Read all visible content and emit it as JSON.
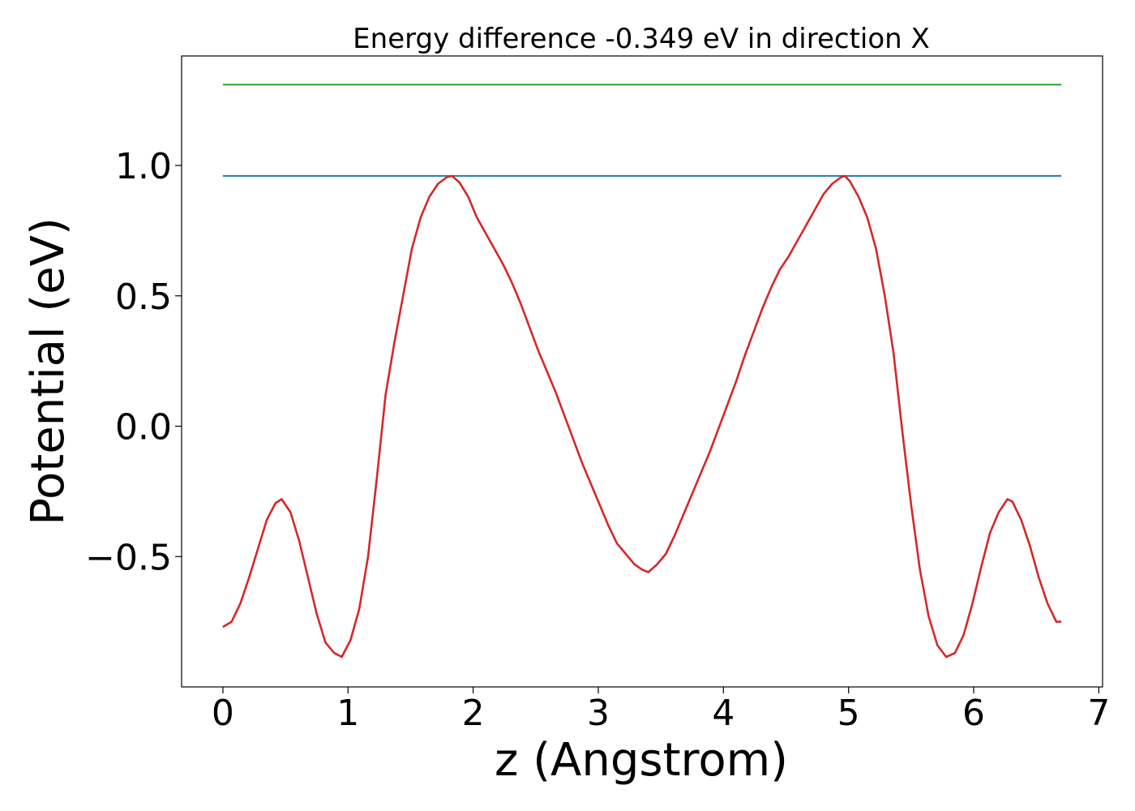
{
  "chart_data": {
    "type": "line",
    "title": "Energy difference -0.349 eV in direction X",
    "xlabel": "z (Angstrom)",
    "ylabel": "Potential (eV)",
    "xlim": [
      -0.33,
      7.03
    ],
    "ylim": [
      -1.0,
      1.42
    ],
    "x_ticks": [
      0,
      1,
      2,
      3,
      4,
      5,
      6,
      7
    ],
    "x_tick_labels": [
      "0",
      "1",
      "2",
      "3",
      "4",
      "5",
      "6",
      "7"
    ],
    "y_ticks": [
      -0.5,
      0.0,
      0.5,
      1.0
    ],
    "y_tick_labels": [
      "−0.5",
      "0.0",
      "0.5",
      "1.0"
    ],
    "grid": false,
    "legend": false,
    "series": [
      {
        "color": "#1f77b4",
        "x": [
          0,
          6.7
        ],
        "y": [
          0.96,
          0.96
        ]
      },
      {
        "color": "#2ca02c",
        "x": [
          0,
          6.7
        ],
        "y": [
          1.31,
          1.31
        ]
      },
      {
        "color": "#d62728",
        "x": [
          0.0,
          0.07,
          0.14,
          0.21,
          0.28,
          0.35,
          0.42,
          0.47,
          0.54,
          0.61,
          0.68,
          0.75,
          0.82,
          0.89,
          0.95,
          1.02,
          1.09,
          1.16,
          1.23,
          1.3,
          1.37,
          1.44,
          1.51,
          1.58,
          1.65,
          1.72,
          1.79,
          1.83,
          1.89,
          1.96,
          2.03,
          2.1,
          2.17,
          2.24,
          2.31,
          2.38,
          2.45,
          2.52,
          2.59,
          2.66,
          2.73,
          2.8,
          2.87,
          2.94,
          3.01,
          3.08,
          3.15,
          3.22,
          3.29,
          3.35,
          3.4,
          3.47,
          3.54,
          3.61,
          3.68,
          3.75,
          3.82,
          3.89,
          3.96,
          4.03,
          4.1,
          4.17,
          4.24,
          4.31,
          4.38,
          4.45,
          4.52,
          4.59,
          4.66,
          4.73,
          4.8,
          4.87,
          4.94,
          4.97,
          5.01,
          5.08,
          5.15,
          5.22,
          5.29,
          5.36,
          5.43,
          5.5,
          5.57,
          5.64,
          5.71,
          5.78,
          5.85,
          5.92,
          5.99,
          6.06,
          6.13,
          6.2,
          6.27,
          6.31,
          6.38,
          6.45,
          6.52,
          6.59,
          6.66,
          6.7
        ],
        "y": [
          -0.77,
          -0.75,
          -0.68,
          -0.58,
          -0.47,
          -0.36,
          -0.295,
          -0.28,
          -0.33,
          -0.44,
          -0.58,
          -0.72,
          -0.83,
          -0.87,
          -0.885,
          -0.82,
          -0.7,
          -0.5,
          -0.2,
          0.12,
          0.32,
          0.5,
          0.68,
          0.8,
          0.88,
          0.93,
          0.955,
          0.96,
          0.935,
          0.88,
          0.8,
          0.74,
          0.68,
          0.62,
          0.55,
          0.47,
          0.38,
          0.29,
          0.21,
          0.13,
          0.04,
          -0.05,
          -0.14,
          -0.22,
          -0.3,
          -0.38,
          -0.45,
          -0.49,
          -0.53,
          -0.55,
          -0.56,
          -0.53,
          -0.49,
          -0.42,
          -0.34,
          -0.26,
          -0.18,
          -0.1,
          -0.01,
          0.08,
          0.17,
          0.27,
          0.36,
          0.45,
          0.53,
          0.6,
          0.65,
          0.71,
          0.77,
          0.83,
          0.89,
          0.93,
          0.955,
          0.96,
          0.94,
          0.88,
          0.8,
          0.68,
          0.5,
          0.28,
          -0.02,
          -0.3,
          -0.55,
          -0.73,
          -0.84,
          -0.885,
          -0.87,
          -0.8,
          -0.68,
          -0.54,
          -0.41,
          -0.33,
          -0.28,
          -0.29,
          -0.36,
          -0.46,
          -0.58,
          -0.68,
          -0.75,
          -0.75
        ]
      }
    ]
  }
}
